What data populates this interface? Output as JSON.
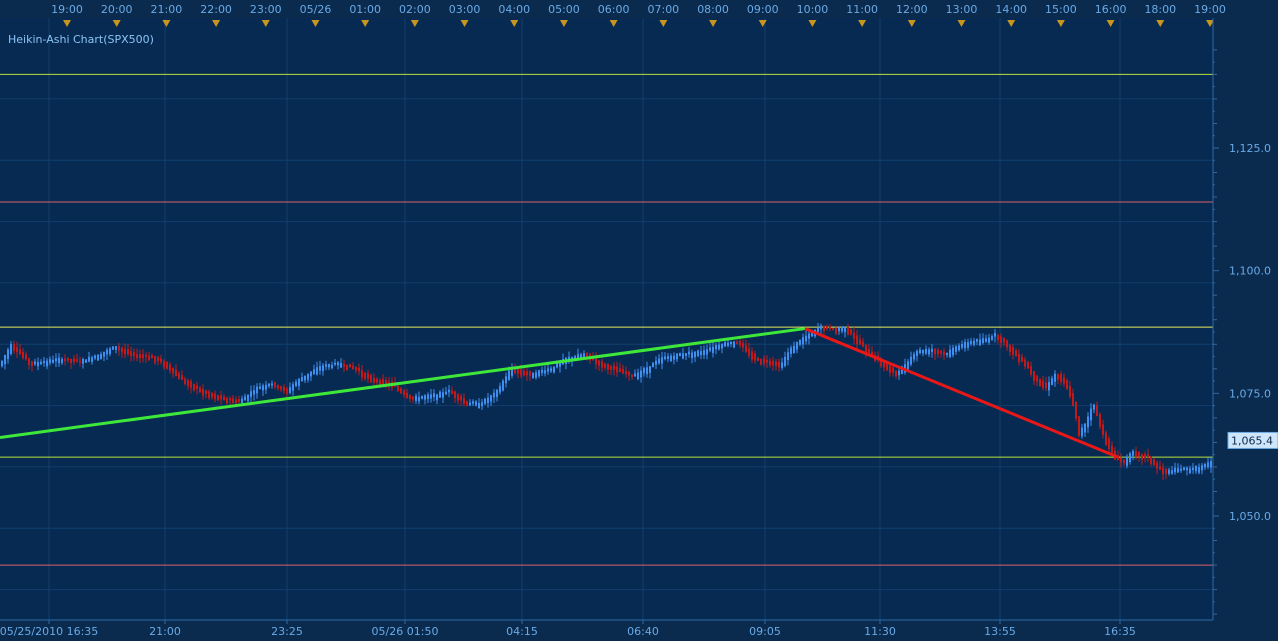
{
  "chart_data": {
    "type": "candlestick",
    "title": "Heikin-Ashi Chart(SPX500)",
    "y_range": [
      1030,
      1145
    ],
    "y_ticks": [
      {
        "value": 1125,
        "label": "1,125.0"
      },
      {
        "value": 1100,
        "label": "1,100.0"
      },
      {
        "value": 1075,
        "label": "1,075.0"
      },
      {
        "value": 1050,
        "label": "1,050.0"
      }
    ],
    "current_price": {
      "value": 1065.4,
      "label": "1,065.4"
    },
    "top_time_labels": [
      "19:00",
      "20:00",
      "21:00",
      "22:00",
      "23:00",
      "05/26",
      "01:00",
      "02:00",
      "03:00",
      "04:00",
      "05:00",
      "06:00",
      "07:00",
      "08:00",
      "09:00",
      "10:00",
      "11:00",
      "12:00",
      "13:00",
      "14:00",
      "15:00",
      "16:00",
      "18:00",
      "19:00"
    ],
    "bottom_time_labels": [
      "05/25/2010 16:35",
      "21:00",
      "23:25",
      "05/26 01:50",
      "04:15",
      "06:40",
      "09:05",
      "11:30",
      "13:55",
      "16:35"
    ],
    "horizontal_levels": [
      {
        "value": 1140.0,
        "color": "#b8e23a"
      },
      {
        "value": 1114.0,
        "color": "#d9606a"
      },
      {
        "value": 1088.5,
        "color": "#e8ea5a"
      },
      {
        "value": 1062.0,
        "color": "#b8e23a"
      },
      {
        "value": 1040.0,
        "color": "#d9606a"
      }
    ],
    "trend_lines": [
      {
        "from": [
          0,
          1066
        ],
        "to": [
          805,
          1088.2
        ],
        "color": "#3ee83a"
      },
      {
        "from": [
          805,
          1088.2
        ],
        "to": [
          1118,
          1062
        ],
        "color": "#e81818"
      }
    ],
    "series_path": [
      [
        0,
        1081
      ],
      [
        10,
        1085
      ],
      [
        20,
        1083
      ],
      [
        30,
        1081
      ],
      [
        45,
        1081.5
      ],
      [
        60,
        1082
      ],
      [
        80,
        1081.5
      ],
      [
        100,
        1083
      ],
      [
        115,
        1084.5
      ],
      [
        130,
        1083
      ],
      [
        150,
        1082.5
      ],
      [
        165,
        1081
      ],
      [
        180,
        1078
      ],
      [
        200,
        1075.5
      ],
      [
        220,
        1074
      ],
      [
        240,
        1073.5
      ],
      [
        255,
        1076
      ],
      [
        270,
        1077
      ],
      [
        285,
        1075.5
      ],
      [
        300,
        1078
      ],
      [
        320,
        1080.5
      ],
      [
        340,
        1081
      ],
      [
        355,
        1080
      ],
      [
        370,
        1078
      ],
      [
        390,
        1077
      ],
      [
        410,
        1074
      ],
      [
        430,
        1074.5
      ],
      [
        450,
        1075.5
      ],
      [
        465,
        1073
      ],
      [
        480,
        1073
      ],
      [
        495,
        1075
      ],
      [
        510,
        1080
      ],
      [
        530,
        1079
      ],
      [
        550,
        1080
      ],
      [
        565,
        1082
      ],
      [
        585,
        1083
      ],
      [
        600,
        1081
      ],
      [
        615,
        1080
      ],
      [
        630,
        1078.5
      ],
      [
        645,
        1080
      ],
      [
        660,
        1082
      ],
      [
        680,
        1083
      ],
      [
        700,
        1083.5
      ],
      [
        720,
        1085
      ],
      [
        735,
        1085.5
      ],
      [
        745,
        1084
      ],
      [
        755,
        1082
      ],
      [
        770,
        1081.5
      ],
      [
        780,
        1081
      ],
      [
        790,
        1084
      ],
      [
        800,
        1086
      ],
      [
        810,
        1087
      ],
      [
        820,
        1088.5
      ],
      [
        835,
        1088
      ],
      [
        845,
        1088.5
      ],
      [
        855,
        1086
      ],
      [
        870,
        1083
      ],
      [
        885,
        1080.5
      ],
      [
        895,
        1079
      ],
      [
        905,
        1081
      ],
      [
        915,
        1083.5
      ],
      [
        930,
        1084
      ],
      [
        945,
        1083
      ],
      [
        955,
        1084.5
      ],
      [
        970,
        1085.5
      ],
      [
        985,
        1086
      ],
      [
        995,
        1087
      ],
      [
        1005,
        1085
      ],
      [
        1015,
        1083
      ],
      [
        1025,
        1081
      ],
      [
        1035,
        1078
      ],
      [
        1045,
        1076.5
      ],
      [
        1055,
        1079
      ],
      [
        1065,
        1077
      ],
      [
        1072,
        1073
      ],
      [
        1078,
        1067
      ],
      [
        1085,
        1069
      ],
      [
        1092,
        1073
      ],
      [
        1100,
        1068
      ],
      [
        1108,
        1064
      ],
      [
        1115,
        1062
      ],
      [
        1122,
        1061
      ],
      [
        1130,
        1063
      ],
      [
        1138,
        1062.5
      ],
      [
        1148,
        1062
      ],
      [
        1155,
        1060
      ],
      [
        1165,
        1059
      ],
      [
        1175,
        1059.5
      ],
      [
        1185,
        1059.5
      ],
      [
        1200,
        1060
      ],
      [
        1212,
        1061
      ]
    ]
  }
}
